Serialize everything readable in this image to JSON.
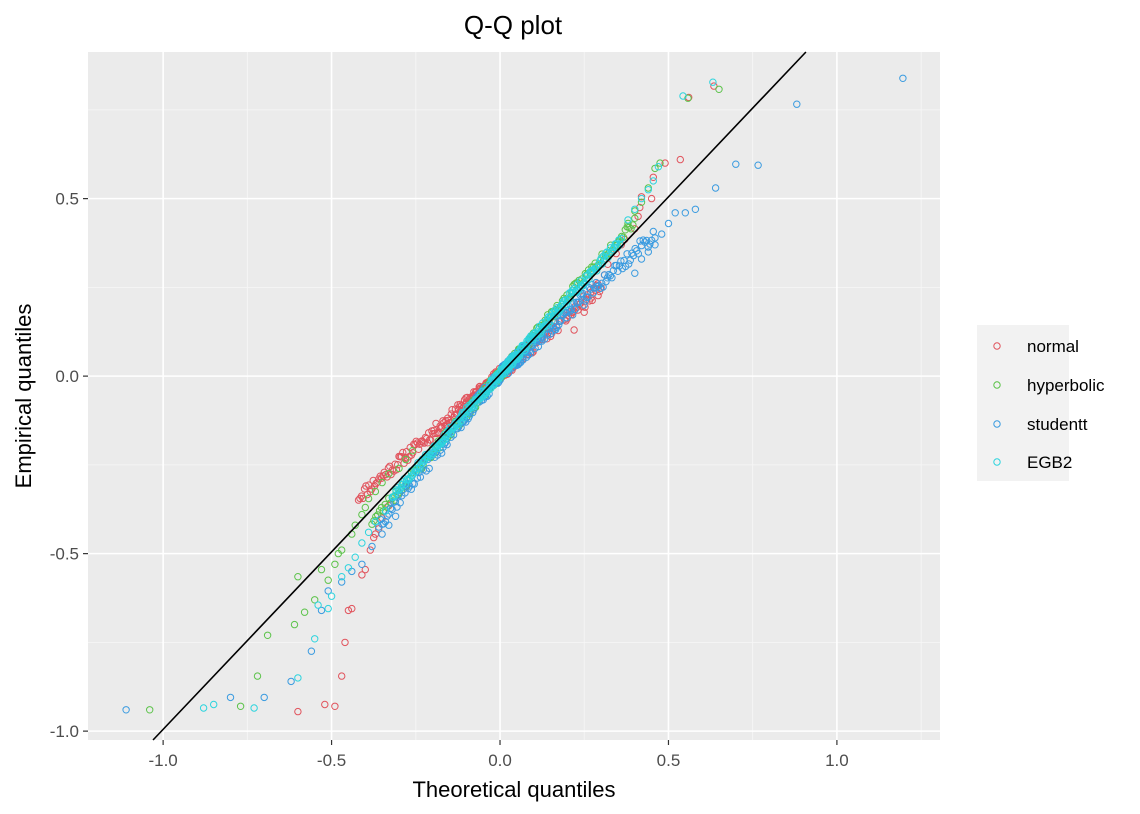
{
  "chart_data": {
    "type": "scatter",
    "title": "Q-Q plot",
    "xlabel": "Theoretical quantiles",
    "ylabel": "Empirical quantiles",
    "xlim": [
      -1.223,
      1.306
    ],
    "ylim": [
      -1.025,
      0.913
    ],
    "x_ticks": [
      -1.0,
      -0.5,
      0.0,
      0.5,
      1.0
    ],
    "x_tick_labels": [
      "-1.0",
      "-0.5",
      "0.0",
      "0.5",
      "1.0"
    ],
    "y_ticks": [
      -1.0,
      -0.5,
      0.0,
      0.5
    ],
    "y_tick_labels": [
      "-1.0",
      "-0.5",
      "0.0",
      "0.5"
    ],
    "grid": true,
    "legend_position": "right",
    "reference_line": {
      "slope": 1.0,
      "intercept": 0.005,
      "color": "#000000"
    },
    "series": [
      {
        "name": "normal",
        "color": "#E1545D",
        "band": {
          "x_from": -0.42,
          "x_to": 0.3,
          "n": 260,
          "offset_neg": 0.075,
          "offset_pos": -0.055,
          "spread": 0.018,
          "seed": 11
        },
        "points": [
          [
            -0.6,
            -0.945
          ],
          [
            -0.52,
            -0.925
          ],
          [
            -0.49,
            -0.93
          ],
          [
            -0.47,
            -0.845
          ],
          [
            -0.46,
            -0.75
          ],
          [
            -0.45,
            -0.66
          ],
          [
            -0.44,
            -0.655
          ],
          [
            -0.41,
            -0.56
          ],
          [
            -0.4,
            -0.545
          ],
          [
            -0.385,
            -0.49
          ],
          [
            -0.375,
            -0.455
          ],
          [
            -0.37,
            -0.445
          ],
          [
            -0.36,
            -0.43
          ],
          [
            -0.35,
            -0.4
          ],
          [
            -0.33,
            -0.365
          ],
          [
            0.22,
            0.13
          ],
          [
            0.25,
            0.18
          ],
          [
            0.27,
            0.22
          ],
          [
            0.29,
            0.26
          ],
          [
            0.31,
            0.285
          ],
          [
            0.32,
            0.315
          ],
          [
            0.345,
            0.345
          ],
          [
            0.36,
            0.37
          ],
          [
            0.37,
            0.385
          ],
          [
            0.4,
            0.415
          ],
          [
            0.41,
            0.45
          ],
          [
            0.415,
            0.475
          ],
          [
            0.42,
            0.505
          ],
          [
            0.45,
            0.5
          ],
          [
            0.455,
            0.56
          ],
          [
            0.49,
            0.6
          ],
          [
            0.535,
            0.61
          ],
          [
            0.56,
            0.785
          ],
          [
            0.635,
            0.817
          ]
        ]
      },
      {
        "name": "hyperbolic",
        "color": "#5CC34A",
        "band": {
          "x_from": -0.38,
          "x_to": 0.4,
          "n": 220,
          "offset_neg": -0.035,
          "offset_pos": 0.035,
          "spread": 0.014,
          "seed": 23
        },
        "points": [
          [
            -1.04,
            -0.94
          ],
          [
            -0.77,
            -0.93
          ],
          [
            -0.72,
            -0.845
          ],
          [
            -0.69,
            -0.73
          ],
          [
            -0.61,
            -0.7
          ],
          [
            -0.58,
            -0.665
          ],
          [
            -0.55,
            -0.63
          ],
          [
            -0.51,
            -0.575
          ],
          [
            -0.6,
            -0.565
          ],
          [
            -0.53,
            -0.545
          ],
          [
            -0.49,
            -0.53
          ],
          [
            -0.48,
            -0.5
          ],
          [
            -0.47,
            -0.49
          ],
          [
            -0.44,
            -0.445
          ],
          [
            -0.43,
            -0.42
          ],
          [
            -0.41,
            -0.39
          ],
          [
            -0.4,
            -0.37
          ],
          [
            -0.39,
            -0.345
          ],
          [
            -0.37,
            -0.325
          ],
          [
            -0.35,
            -0.3
          ],
          [
            -0.33,
            -0.275
          ],
          [
            -0.3,
            -0.26
          ],
          [
            -0.28,
            -0.235
          ],
          [
            -0.26,
            -0.21
          ],
          [
            0.38,
            0.43
          ],
          [
            0.4,
            0.465
          ],
          [
            0.42,
            0.49
          ],
          [
            0.44,
            0.53
          ],
          [
            0.46,
            0.585
          ],
          [
            0.475,
            0.6
          ],
          [
            0.558,
            0.783
          ],
          [
            0.65,
            0.808
          ]
        ]
      },
      {
        "name": "studentt",
        "color": "#3A9BE0",
        "band": {
          "x_from": -0.36,
          "x_to": 0.46,
          "n": 260,
          "offset_neg": -0.06,
          "offset_pos": -0.065,
          "spread": 0.02,
          "seed": 37
        },
        "points": [
          [
            -1.11,
            -0.94
          ],
          [
            -0.8,
            -0.905
          ],
          [
            -0.7,
            -0.905
          ],
          [
            -0.62,
            -0.86
          ],
          [
            -0.56,
            -0.775
          ],
          [
            -0.53,
            -0.66
          ],
          [
            -0.51,
            -0.605
          ],
          [
            -0.47,
            -0.58
          ],
          [
            -0.44,
            -0.55
          ],
          [
            -0.41,
            -0.53
          ],
          [
            -0.38,
            -0.48
          ],
          [
            -0.35,
            -0.445
          ],
          [
            -0.33,
            -0.42
          ],
          [
            -0.31,
            -0.395
          ],
          [
            0.4,
            0.29
          ],
          [
            0.42,
            0.33
          ],
          [
            0.44,
            0.35
          ],
          [
            0.46,
            0.37
          ],
          [
            0.48,
            0.4
          ],
          [
            0.5,
            0.43
          ],
          [
            0.52,
            0.46
          ],
          [
            0.55,
            0.46
          ],
          [
            0.58,
            0.47
          ],
          [
            0.64,
            0.53
          ],
          [
            0.7,
            0.597
          ],
          [
            0.766,
            0.594
          ],
          [
            0.881,
            0.766
          ],
          [
            1.196,
            0.839
          ]
        ]
      },
      {
        "name": "EGB2",
        "color": "#2DD4DE",
        "band": {
          "x_from": -0.32,
          "x_to": 0.36,
          "n": 300,
          "offset_neg": -0.02,
          "offset_pos": 0.02,
          "spread": 0.012,
          "seed": 53
        },
        "points": [
          [
            -0.88,
            -0.935
          ],
          [
            -0.85,
            -0.925
          ],
          [
            -0.73,
            -0.935
          ],
          [
            -0.6,
            -0.85
          ],
          [
            -0.55,
            -0.74
          ],
          [
            -0.54,
            -0.645
          ],
          [
            -0.51,
            -0.655
          ],
          [
            -0.5,
            -0.62
          ],
          [
            -0.47,
            -0.565
          ],
          [
            -0.45,
            -0.54
          ],
          [
            -0.43,
            -0.51
          ],
          [
            -0.41,
            -0.47
          ],
          [
            -0.39,
            -0.44
          ],
          [
            -0.37,
            -0.41
          ],
          [
            -0.34,
            -0.38
          ],
          [
            0.38,
            0.44
          ],
          [
            0.4,
            0.47
          ],
          [
            0.42,
            0.5
          ],
          [
            0.44,
            0.525
          ],
          [
            0.455,
            0.55
          ],
          [
            0.47,
            0.59
          ],
          [
            0.543,
            0.789
          ],
          [
            0.632,
            0.828
          ]
        ]
      }
    ]
  },
  "legend": {
    "items": [
      {
        "label": "normal",
        "color": "#E1545D"
      },
      {
        "label": "hyperbolic",
        "color": "#5CC34A"
      },
      {
        "label": "studentt",
        "color": "#3A9BE0"
      },
      {
        "label": "EGB2",
        "color": "#2DD4DE"
      }
    ]
  }
}
